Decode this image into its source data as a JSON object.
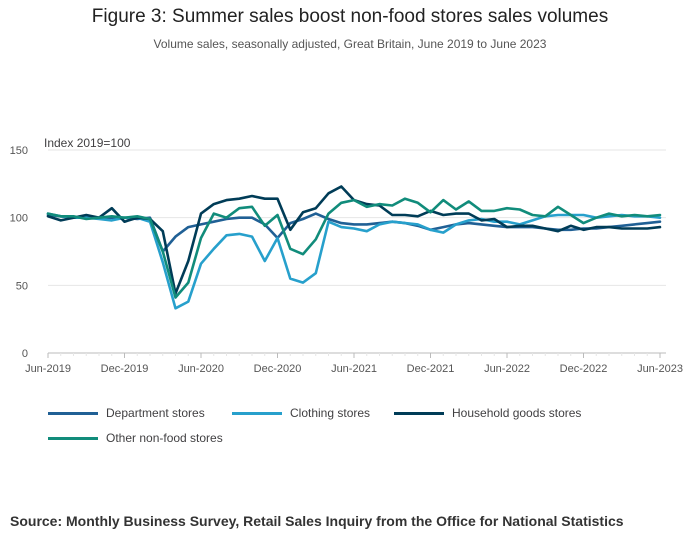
{
  "colors": {
    "department": "#206095",
    "clothing": "#27a0cc",
    "household": "#003c57",
    "other": "#118c7b",
    "grid": "#e6e6e6",
    "axis": "#bbbbbb"
  },
  "chart_data": {
    "type": "line",
    "title": "Figure 3: Summer sales boost non-food stores sales volumes",
    "subtitle": "Volume sales, seasonally adjusted, Great Britain, June 2019 to June 2023",
    "ylabel": "Index 2019=100",
    "ylim": [
      0,
      150
    ],
    "yticks": [
      0,
      50,
      100,
      150
    ],
    "xtick_labels": [
      "Jun-2019",
      "Dec-2019",
      "Jun-2020",
      "Dec-2020",
      "Jun-2021",
      "Dec-2021",
      "Jun-2022",
      "Dec-2022",
      "Jun-2023"
    ],
    "x": [
      "2019-06",
      "2019-07",
      "2019-08",
      "2019-09",
      "2019-10",
      "2019-11",
      "2019-12",
      "2020-01",
      "2020-02",
      "2020-03",
      "2020-04",
      "2020-05",
      "2020-06",
      "2020-07",
      "2020-08",
      "2020-09",
      "2020-10",
      "2020-11",
      "2020-12",
      "2021-01",
      "2021-02",
      "2021-03",
      "2021-04",
      "2021-05",
      "2021-06",
      "2021-07",
      "2021-08",
      "2021-09",
      "2021-10",
      "2021-11",
      "2021-12",
      "2022-01",
      "2022-02",
      "2022-03",
      "2022-04",
      "2022-05",
      "2022-06",
      "2022-07",
      "2022-08",
      "2022-09",
      "2022-10",
      "2022-11",
      "2022-12",
      "2023-01",
      "2023-02",
      "2023-03",
      "2023-04",
      "2023-05",
      "2023-06"
    ],
    "grid": true,
    "legend": "bottom",
    "series": [
      {
        "name": "Department stores",
        "color_key": "department",
        "values": [
          102,
          101,
          100,
          101,
          100,
          100,
          100,
          99,
          100,
          75,
          86,
          93,
          95,
          97,
          99,
          100,
          100,
          95,
          85,
          96,
          99,
          103,
          99,
          96,
          95,
          95,
          96,
          97,
          96,
          94,
          91,
          93,
          95,
          96,
          95,
          94,
          93,
          93,
          93,
          92,
          91,
          91,
          92,
          92,
          93,
          94,
          95,
          96,
          97
        ]
      },
      {
        "name": "Clothing stores",
        "color_key": "clothing",
        "values": [
          103,
          101,
          100,
          100,
          99,
          98,
          100,
          100,
          97,
          67,
          33,
          38,
          66,
          77,
          87,
          88,
          86,
          68,
          85,
          55,
          52,
          59,
          97,
          93,
          92,
          90,
          95,
          97,
          96,
          95,
          91,
          89,
          95,
          98,
          99,
          97,
          97,
          95,
          98,
          101,
          102,
          102,
          102,
          100,
          101,
          102,
          101,
          101,
          100
        ]
      },
      {
        "name": "Household goods stores",
        "color_key": "household",
        "values": [
          101,
          98,
          100,
          102,
          100,
          107,
          97,
          100,
          99,
          90,
          44,
          68,
          103,
          110,
          113,
          114,
          116,
          114,
          114,
          91,
          104,
          107,
          118,
          123,
          113,
          110,
          109,
          102,
          102,
          101,
          105,
          102,
          103,
          103,
          98,
          99,
          93,
          94,
          94,
          92,
          90,
          94,
          91,
          93,
          93,
          92,
          92,
          92,
          93
        ]
      },
      {
        "name": "Other non-food stores",
        "color_key": "other",
        "values": [
          103,
          101,
          101,
          99,
          100,
          101,
          100,
          101,
          99,
          75,
          41,
          52,
          85,
          103,
          100,
          107,
          108,
          94,
          102,
          77,
          73,
          84,
          103,
          111,
          113,
          108,
          110,
          109,
          114,
          111,
          104,
          113,
          106,
          112,
          105,
          105,
          107,
          106,
          102,
          101,
          108,
          102,
          96,
          100,
          103,
          101,
          102,
          101,
          102
        ]
      }
    ],
    "legend_labels": [
      "Department stores",
      "Clothing stores",
      "Household goods stores",
      "Other non-food stores"
    ]
  },
  "source": "Source: Monthly Business Survey, Retail Sales Inquiry from the Office for National Statistics"
}
